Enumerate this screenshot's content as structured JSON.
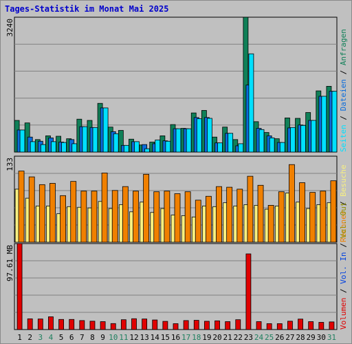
{
  "title": "Tages-Statistik im Monat Mai 2025",
  "colors": {
    "anfragen": "#108058",
    "dateien": "#0a6cdc",
    "seiten": "#00e0ff",
    "besuche": "#f8f080",
    "rechner": "#f08000",
    "vol_in": "#0040e0",
    "vol_out": "#909000",
    "volumen": "#e00000",
    "weekday_label": "#000000",
    "weekend_label": "#208060",
    "slash": "#000000"
  },
  "legend_top": {
    "anfragen": "Anfragen",
    "dateien": "Dateien",
    "seiten": "Seiten",
    "sep": "/"
  },
  "legend_mid": {
    "besuche": "Besuche",
    "rechner": "Rechner",
    "sep": "/"
  },
  "legend_bot": {
    "vol_out": "Vol. Out",
    "vol_in": "Vol. In",
    "volumen": "Volumen",
    "sep": "/"
  },
  "chart_data": {
    "type": "bar",
    "x": [
      "1",
      "2",
      "3",
      "4",
      "5",
      "6",
      "7",
      "8",
      "9",
      "10",
      "11",
      "12",
      "13",
      "14",
      "15",
      "16",
      "17",
      "18",
      "19",
      "20",
      "21",
      "22",
      "23",
      "24",
      "25",
      "26",
      "27",
      "28",
      "29",
      "30",
      "31"
    ],
    "weekend_days": [
      "3",
      "4",
      "10",
      "11",
      "17",
      "18",
      "24",
      "25",
      "31"
    ],
    "panels": [
      {
        "id": "hits",
        "ymax": 3240,
        "ymax_label": "3240",
        "series": [
          {
            "name": "Anfragen",
            "values": [
              760,
              700,
              300,
              390,
              380,
              320,
              790,
              760,
              1170,
              600,
              520,
              310,
              170,
              240,
              390,
              660,
              570,
              940,
              1000,
              360,
              600,
              300,
              3240,
              730,
              470,
              320,
              820,
              810,
              950,
              1470,
              1580
            ]
          },
          {
            "name": "Dateien",
            "values": [
              530,
              360,
              260,
              340,
              240,
              300,
              610,
              590,
              1060,
              490,
              160,
              250,
              180,
              200,
              270,
              560,
              560,
              830,
              830,
              220,
              450,
              150,
              1610,
              570,
              390,
              230,
              580,
              650,
              760,
              1340,
              1460
            ]
          },
          {
            "name": "Seiten",
            "values": [
              530,
              250,
              180,
              250,
              230,
              200,
              610,
              590,
              1060,
              440,
              160,
              250,
              80,
              290,
              260,
              560,
              560,
              800,
              810,
              220,
              450,
              200,
              2360,
              540,
              340,
              230,
              590,
              640,
              760,
              1340,
              1460
            ]
          }
        ]
      },
      {
        "id": "visits",
        "ymax": 133,
        "ymax_label": "133",
        "series": [
          {
            "name": "Besuche",
            "values": [
              82,
              68,
              56,
              56,
              44,
              55,
              54,
              53,
              63,
              52,
              58,
              47,
              62,
              46,
              52,
              42,
              41,
              39,
              56,
              55,
              61,
              56,
              58,
              57,
              51,
              56,
              76,
              62,
              52,
              58,
              61
            ]
          },
          {
            "name": "Rechner",
            "values": [
              110,
              101,
              89,
              91,
              72,
              94,
              79,
              79,
              107,
              80,
              86,
              79,
              105,
              78,
              79,
              75,
              78,
              65,
              71,
              86,
              85,
              82,
              102,
              88,
              57,
              78,
              120,
              92,
              77,
              79,
              95
            ]
          }
        ]
      },
      {
        "id": "volume",
        "ymax": 97.61,
        "ymax_label": "97.61 MB",
        "series": [
          {
            "name": "Volumen",
            "values": [
              97.61,
              12.2,
              12.0,
              14.5,
              11.5,
              11.5,
              10.2,
              9.5,
              9.0,
              6.8,
              11.2,
              12.3,
              12.0,
              10.9,
              9.3,
              6.7,
              10.2,
              10.5,
              9.4,
              9.9,
              9.0,
              11.2,
              85.9,
              9.0,
              6.7,
              6.7,
              9.5,
              11.9,
              9.0,
              8.2,
              8.7
            ]
          }
        ]
      }
    ]
  }
}
